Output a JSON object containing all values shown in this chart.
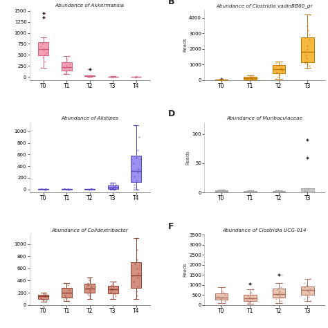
{
  "panel_A": {
    "title": "Abundance of Akkermansia",
    "color": "#f4a0b5",
    "edge_color": "#d06080",
    "flier_color": "#d06080",
    "categories": [
      "T0",
      "T1",
      "T2",
      "T3",
      "T4"
    ],
    "data": [
      [
        200,
        350,
        450,
        500,
        550,
        600,
        650,
        700,
        750,
        900,
        1350,
        1450
      ],
      [
        60,
        80,
        130,
        160,
        200,
        250,
        290,
        340,
        400,
        480
      ],
      [
        5,
        8,
        12,
        18,
        22,
        28,
        35,
        40,
        180
      ],
      [
        2,
        4,
        6,
        8,
        10,
        12,
        14
      ],
      [
        1,
        2,
        3,
        4,
        6,
        8,
        10
      ]
    ],
    "ylabel": "",
    "panel_label": "",
    "show_label": false
  },
  "panel_B": {
    "title": "Abundance of Clostridia vadinBB60_gr",
    "color": "#f5b942",
    "edge_color": "#c07800",
    "flier_color": "#c07800",
    "categories": [
      "T0",
      "T1",
      "T2",
      "T3"
    ],
    "data": [
      [
        0,
        5,
        10,
        15,
        20,
        25,
        30,
        50,
        80
      ],
      [
        0,
        10,
        30,
        80,
        150,
        200,
        250,
        300
      ],
      [
        100,
        200,
        350,
        500,
        600,
        700,
        800,
        900,
        1050,
        1100,
        1200
      ],
      [
        800,
        900,
        1000,
        1100,
        1200,
        1400,
        1600,
        1800,
        2000,
        2200,
        2600,
        2900,
        3200,
        3500,
        4200
      ]
    ],
    "ylabel": "Reads",
    "panel_label": "B",
    "show_label": true,
    "ylim": [
      0,
      4500
    ]
  },
  "panel_C": {
    "title": "Abundance of Alistipes",
    "color": "#9b8fef",
    "edge_color": "#5544bb",
    "flier_color": "#5544bb",
    "categories": [
      "T0",
      "T1",
      "T2",
      "T3",
      "T4"
    ],
    "data": [
      [
        0,
        1,
        2,
        3,
        4,
        5,
        6
      ],
      [
        0,
        1,
        2,
        3,
        4,
        5
      ],
      [
        0,
        1,
        2,
        3,
        4,
        5
      ],
      [
        0,
        5,
        10,
        15,
        20,
        30,
        40,
        60,
        80,
        95,
        110
      ],
      [
        0,
        30,
        80,
        150,
        220,
        290,
        350,
        450,
        550,
        680,
        900,
        1100
      ]
    ],
    "ylabel": "",
    "panel_label": "",
    "show_label": false
  },
  "panel_D": {
    "title": "Abundance of Muribaculaceae",
    "color": "#dddddd",
    "edge_color": "#aaaaaa",
    "flier_color": "#aaaaaa",
    "categories": [
      "T0",
      "T1",
      "T2",
      "T3"
    ],
    "data": [
      [
        0,
        1,
        2,
        3,
        4,
        5
      ],
      [
        0,
        1,
        2,
        3,
        4
      ],
      [
        0,
        1,
        2,
        3,
        4
      ],
      [
        0,
        1,
        2,
        3,
        4,
        5,
        6,
        7,
        8,
        60,
        90
      ]
    ],
    "ylabel": "Reads",
    "panel_label": "D",
    "show_label": true,
    "ylim": [
      0,
      120
    ],
    "yticks": [
      0,
      50,
      100
    ]
  },
  "panel_E": {
    "title": "Abundance of Colidextribacter",
    "color": "#d49080",
    "edge_color": "#904030",
    "flier_color": "#904030",
    "categories": [
      "T0",
      "T1",
      "T2",
      "T3",
      "T4"
    ],
    "data": [
      [
        50,
        70,
        90,
        110,
        130,
        150,
        160,
        170,
        180,
        200
      ],
      [
        60,
        90,
        120,
        160,
        200,
        240,
        280,
        320,
        360
      ],
      [
        100,
        150,
        180,
        210,
        240,
        270,
        300,
        330,
        360,
        400,
        450
      ],
      [
        100,
        140,
        180,
        210,
        240,
        270,
        300,
        320,
        350,
        380
      ],
      [
        100,
        160,
        220,
        300,
        380,
        450,
        520,
        600,
        680,
        750,
        900,
        1100
      ]
    ],
    "ylabel": "",
    "panel_label": "",
    "show_label": false
  },
  "panel_F": {
    "title": "Abundance of Clostridia UCG-014",
    "color": "#e8c4b0",
    "edge_color": "#b07060",
    "flier_color": "#b07060",
    "categories": [
      "T0",
      "T1",
      "T2",
      "T3"
    ],
    "data": [
      [
        100,
        180,
        240,
        300,
        360,
        420,
        500,
        600,
        700,
        900
      ],
      [
        50,
        100,
        150,
        200,
        250,
        300,
        350,
        400,
        480,
        600,
        800,
        1050
      ],
      [
        100,
        200,
        300,
        380,
        450,
        520,
        600,
        680,
        780,
        900,
        1100,
        1500
      ],
      [
        200,
        300,
        420,
        520,
        600,
        680,
        750,
        820,
        880,
        940,
        1000,
        1100,
        1300
      ]
    ],
    "ylabel": "Reads",
    "panel_label": "F",
    "show_label": true,
    "ylim": [
      0,
      3500
    ]
  },
  "background_color": "#ffffff"
}
